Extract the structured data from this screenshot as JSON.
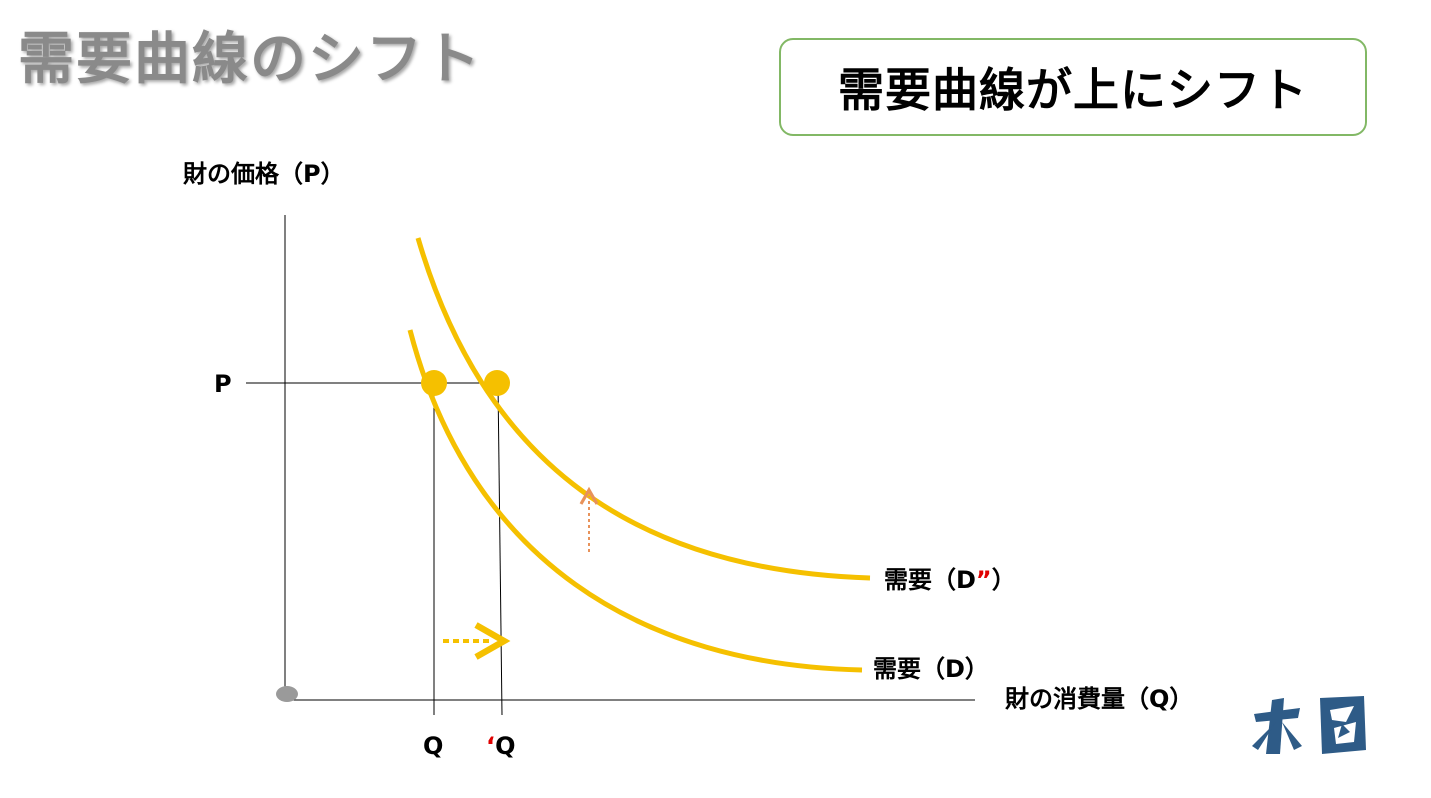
{
  "title": "需要曲線のシフト",
  "banner": "需要曲線が上にシフト",
  "axes": {
    "y_label": "財の価格（P）",
    "x_label": "財の消費量（Q）"
  },
  "price_label": "P",
  "quantity_labels": {
    "original": "Q",
    "shifted_mark": "‘",
    "shifted": "Q"
  },
  "curves": {
    "original": {
      "prefix": "需要（D",
      "suffix": "）"
    },
    "shifted": {
      "prefix": "需要（D",
      "mark": "”",
      "suffix": "）"
    }
  },
  "colors": {
    "curve": "#f5c000",
    "point": "#f5c000",
    "up_arrow": "#e8925a",
    "right_arrow": "#f5c000",
    "axis": "#000000",
    "mark_red": "#e00000",
    "logo": "#2e5b87"
  }
}
